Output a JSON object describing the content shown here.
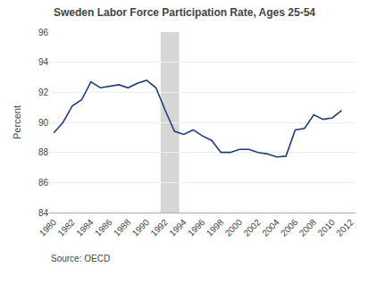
{
  "chart_data": {
    "type": "line",
    "title": "Sweden Labor Force Participation Rate, Ages 25-54",
    "ylabel": "Percent",
    "annotations": [
      "Source: OECD"
    ],
    "x": [
      1980,
      1981,
      1982,
      1983,
      1984,
      1985,
      1986,
      1987,
      1988,
      1989,
      1990,
      1991,
      1992,
      1993,
      1994,
      1995,
      1996,
      1997,
      1998,
      1999,
      2000,
      2001,
      2002,
      2003,
      2004,
      2005,
      2006,
      2007,
      2008,
      2009,
      2010,
      2011
    ],
    "values": [
      89.3,
      90.0,
      91.1,
      91.5,
      92.7,
      92.3,
      92.4,
      92.5,
      92.3,
      92.6,
      92.8,
      92.3,
      90.8,
      89.4,
      89.2,
      89.5,
      89.1,
      88.8,
      88.0,
      88.0,
      88.2,
      88.2,
      88.0,
      87.9,
      87.7,
      87.75,
      89.5,
      89.6,
      90.5,
      90.2,
      90.3,
      90.8
    ],
    "color": "#1f3d7a",
    "shaded": {
      "x": [
        1991.5,
        1993.5
      ],
      "color": "#c8c8c8"
    },
    "xlim": [
      1979.5,
      2012.5
    ],
    "xticks": [
      1980,
      1982,
      1984,
      1986,
      1988,
      1990,
      1992,
      1994,
      1996,
      1998,
      2000,
      2002,
      2004,
      2006,
      2008,
      2010,
      2012
    ],
    "ylim": [
      84,
      96
    ],
    "yticks": [
      84,
      86,
      88,
      90,
      92,
      94,
      96
    ],
    "grid": true
  }
}
